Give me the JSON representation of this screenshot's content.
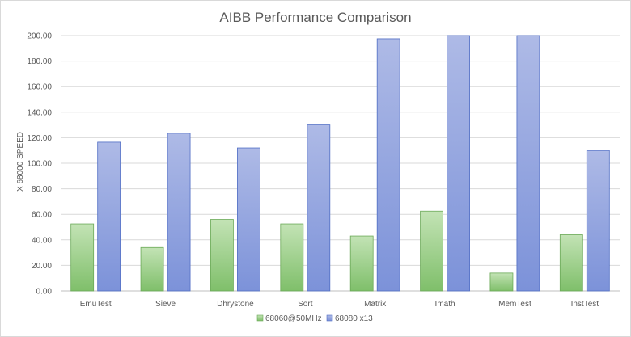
{
  "chart_data": {
    "type": "bar",
    "title": "AIBB Performance Comparison",
    "xlabel": "",
    "ylabel": "X 68000 SPEED",
    "categories": [
      "EmuTest",
      "Sieve",
      "Dhrystone",
      "Sort",
      "Matrix",
      "Imath",
      "MemTest",
      "InstTest"
    ],
    "series": [
      {
        "name": "68060@50MHz",
        "values": [
          52.5,
          34,
          56,
          52.5,
          43,
          62.5,
          14,
          44
        ],
        "color": "#8cc77a"
      },
      {
        "name": "68080 x13",
        "values": [
          116.5,
          123.5,
          112,
          130,
          197.5,
          200,
          200,
          110
        ],
        "color": "#7f93d6"
      }
    ],
    "ylim": [
      0,
      200
    ],
    "yticks": [
      "0.00",
      "20.00",
      "40.00",
      "60.00",
      "80.00",
      "100.00",
      "120.00",
      "140.00",
      "160.00",
      "180.00",
      "200.00"
    ],
    "grid": true,
    "legend": "bottom"
  }
}
